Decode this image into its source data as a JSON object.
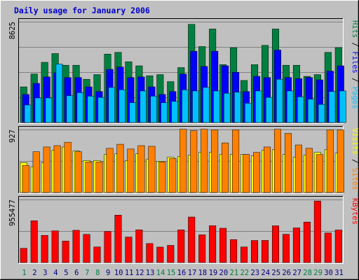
{
  "chart_data": {
    "type": "bar",
    "title": "Daily usage for January 2006",
    "categories": [
      "1",
      "2",
      "3",
      "4",
      "5",
      "6",
      "7",
      "8",
      "9",
      "10",
      "11",
      "12",
      "13",
      "14",
      "15",
      "16",
      "17",
      "18",
      "19",
      "20",
      "21",
      "22",
      "23",
      "24",
      "25",
      "26",
      "27",
      "28",
      "29",
      "30",
      "31"
    ],
    "weekend_days": [
      "1",
      "7",
      "8",
      "14",
      "15",
      "21",
      "22",
      "28",
      "29"
    ],
    "colors": {
      "background": "#c0c0c0",
      "title": "#0000cc",
      "hits": "#008040",
      "files": "#0000ff",
      "pages": "#00c0ff",
      "visits": "#ffff00",
      "sites": "#ff8000",
      "kbytes": "#ff0000",
      "weekday_label": "#000080",
      "weekend_label": "#008040"
    },
    "panels": [
      {
        "id": "requests",
        "max_label": "8625",
        "ylim": [
          0,
          8625
        ],
        "axis_labels": [
          {
            "text": "Pages",
            "color": "#00c0ff"
          },
          {
            "text": "Files",
            "color": "#0000ff"
          },
          {
            "text": "Hits",
            "color": "#008040"
          }
        ],
        "series": [
          {
            "name": "Hits",
            "color": "#008040",
            "values": [
              3050,
              4150,
              5150,
              5900,
              4900,
              4900,
              3700,
              4100,
              5850,
              6000,
              5200,
              4850,
              4000,
              4100,
              3500,
              4700,
              8400,
              6500,
              8000,
              4950,
              6400,
              3600,
              4950,
              6600,
              8000,
              4900,
              4900,
              3950,
              4100,
              6000,
              6400
            ]
          },
          {
            "name": "Files",
            "color": "#0000ff",
            "values": [
              2400,
              3350,
              3900,
              4250,
              3850,
              3850,
              3050,
              2650,
              4550,
              4750,
              3850,
              3900,
              3050,
              2400,
              2650,
              4150,
              6100,
              4800,
              6100,
              4850,
              4300,
              2650,
              3950,
              3850,
              6200,
              3850,
              3750,
              3850,
              3650,
              4400,
              4850
            ]
          },
          {
            "name": "Pages",
            "color": "#00c0ff",
            "values": [
              1500,
              2100,
              2100,
              5000,
              2300,
              2550,
              2250,
              2150,
              3000,
              2800,
              1700,
              2700,
              2250,
              1700,
              1800,
              2800,
              2700,
              3000,
              2700,
              2500,
              2600,
              1650,
              2700,
              2150,
              3700,
              2700,
              2200,
              2000,
              1550,
              2650,
              2700
            ]
          }
        ]
      },
      {
        "id": "visits",
        "max_label": "927",
        "ylim": [
          0,
          927
        ],
        "axis_labels": [
          {
            "text": "Sites",
            "color": "#ff8000"
          },
          {
            "text": "Visits",
            "color": "#ffff00"
          }
        ],
        "series": [
          {
            "name": "Visits",
            "color": "#ffff00",
            "values": [
              440,
              380,
              440,
              620,
              670,
              610,
              470,
              470,
              560,
              570,
              470,
              570,
              490,
              460,
              520,
              530,
              550,
              590,
              590,
              560,
              560,
              560,
              540,
              620,
              630,
              560,
              520,
              550,
              590,
              630,
              580
            ]
          },
          {
            "name": "Sites",
            "color": "#ff8000",
            "values": [
              400,
              600,
              670,
              690,
              740,
              600,
              450,
              450,
              650,
              710,
              640,
              690,
              680,
              450,
              500,
              930,
              910,
              930,
              920,
              730,
              920,
              560,
              590,
              670,
              930,
              870,
              700,
              650,
              560,
              920,
              920
            ]
          }
        ]
      },
      {
        "id": "kbytes",
        "max_label": "955477",
        "ylim": [
          0,
          955477
        ],
        "axis_labels": [
          {
            "text": "KBytes",
            "color": "#ff0000"
          }
        ],
        "series": [
          {
            "name": "KBytes",
            "color": "#ff0000",
            "values": [
              215000,
              633000,
              411000,
              480000,
              325000,
              489000,
              427000,
              236000,
              472000,
              719000,
              386000,
              496000,
              288000,
              234000,
              260000,
              495000,
              690000,
              420000,
              558000,
              520000,
              348000,
              236000,
              334000,
              335000,
              557000,
              428000,
              525000,
              614000,
              933000,
              448000,
              493000
            ]
          }
        ]
      }
    ]
  }
}
